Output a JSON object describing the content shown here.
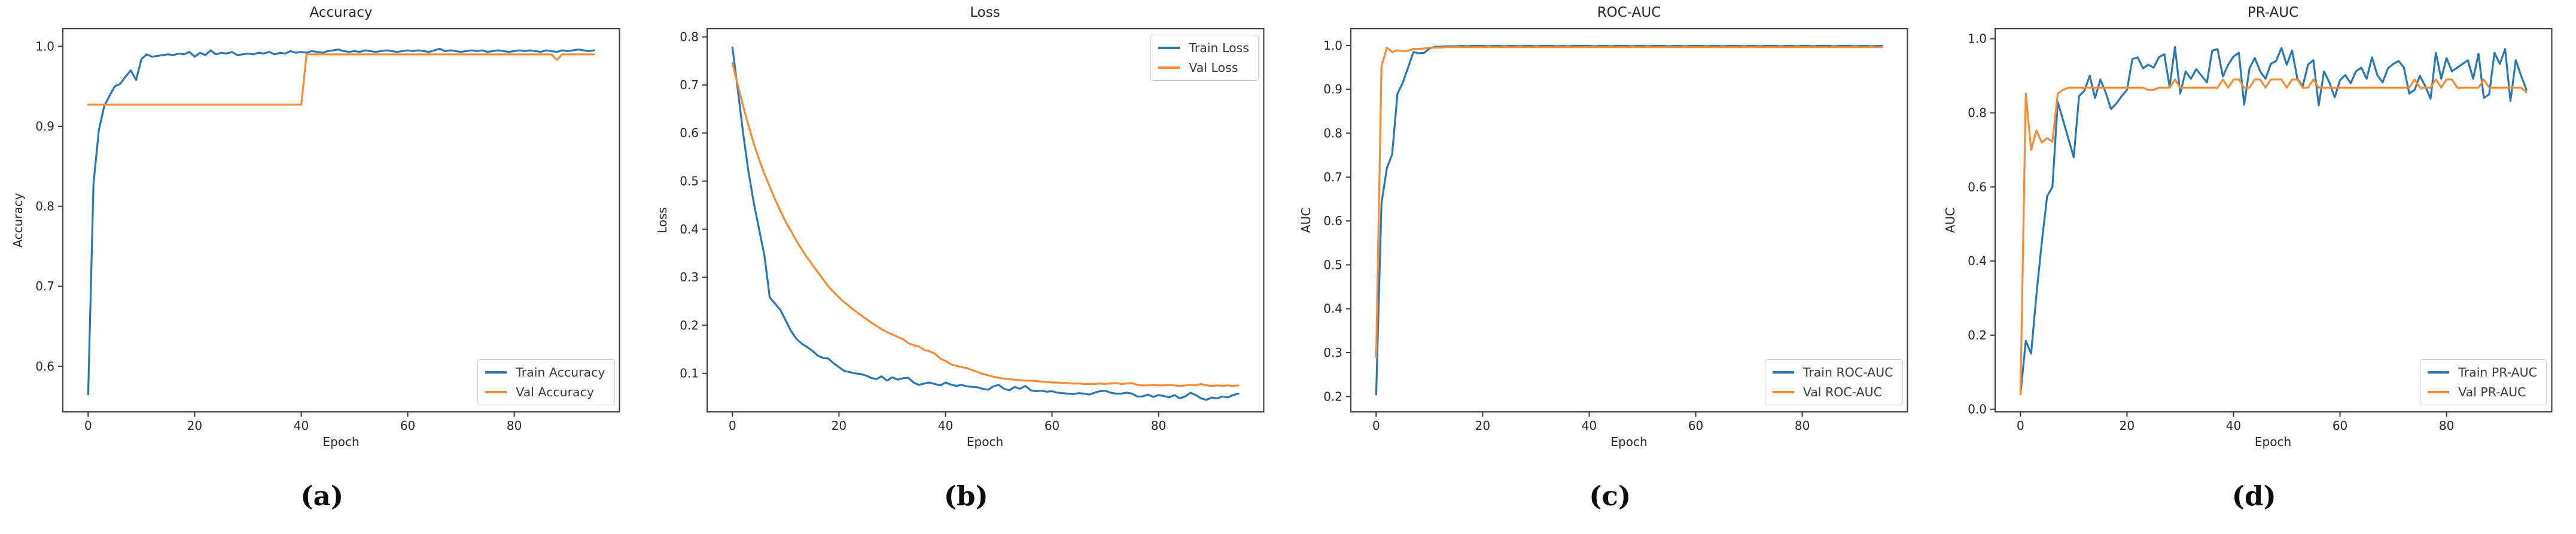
{
  "palette": {
    "train_blue": "#2878b8",
    "val_orange": "#fb8b32",
    "axis_frame": "#3a3a3a",
    "text": "#262626",
    "legend_border": "#cccccc",
    "background": "#ffffff"
  },
  "chart_data": [
    {
      "type": "line",
      "title": "Accuracy",
      "xlabel": "Epoch",
      "ylabel": "Accuracy",
      "caption": "(a)",
      "legend_position": "bottom-right",
      "xlim": [
        -4.75,
        99.75
      ],
      "ylim": [
        0.543,
        1.022
      ],
      "xticks": [
        0,
        20,
        40,
        60,
        80
      ],
      "yticks": [
        0.6,
        0.7,
        0.8,
        0.9,
        1.0
      ],
      "yticklabels": [
        "0.6",
        "0.7",
        "0.8",
        "0.9",
        "1.0"
      ],
      "grid": false,
      "series": [
        {
          "name": "Train Accuracy",
          "color": "#2878b8",
          "values": [
            0.565,
            0.828,
            0.895,
            0.925,
            0.938,
            0.95,
            0.953,
            0.962,
            0.97,
            0.958,
            0.984,
            0.99,
            0.987,
            0.988,
            0.989,
            0.99,
            0.989,
            0.991,
            0.99,
            0.993,
            0.987,
            0.992,
            0.989,
            0.995,
            0.99,
            0.992,
            0.991,
            0.993,
            0.989,
            0.99,
            0.991,
            0.99,
            0.992,
            0.991,
            0.993,
            0.99,
            0.992,
            0.991,
            0.994,
            0.992,
            0.993,
            0.992,
            0.994,
            0.993,
            0.992,
            0.994,
            0.995,
            0.996,
            0.994,
            0.993,
            0.994,
            0.993,
            0.995,
            0.994,
            0.993,
            0.994,
            0.995,
            0.994,
            0.993,
            0.994,
            0.995,
            0.994,
            0.995,
            0.994,
            0.993,
            0.995,
            0.997,
            0.994,
            0.995,
            0.994,
            0.993,
            0.994,
            0.995,
            0.994,
            0.995,
            0.993,
            0.994,
            0.995,
            0.994,
            0.993,
            0.994,
            0.995,
            0.994,
            0.995,
            0.994,
            0.993,
            0.995,
            0.994,
            0.993,
            0.995,
            0.994,
            0.995,
            0.996,
            0.995,
            0.994,
            0.995
          ]
        },
        {
          "name": "Val Accuracy",
          "color": "#fb8b32",
          "values": [
            0.927,
            0.927,
            0.927,
            0.927,
            0.927,
            0.927,
            0.927,
            0.927,
            0.927,
            0.927,
            0.927,
            0.927,
            0.927,
            0.927,
            0.927,
            0.927,
            0.927,
            0.927,
            0.927,
            0.927,
            0.927,
            0.927,
            0.927,
            0.927,
            0.927,
            0.927,
            0.927,
            0.927,
            0.927,
            0.927,
            0.927,
            0.927,
            0.927,
            0.927,
            0.927,
            0.927,
            0.927,
            0.927,
            0.927,
            0.927,
            0.927,
            0.99,
            0.99,
            0.99,
            0.99,
            0.99,
            0.99,
            0.99,
            0.99,
            0.99,
            0.99,
            0.99,
            0.99,
            0.99,
            0.99,
            0.99,
            0.99,
            0.99,
            0.99,
            0.99,
            0.99,
            0.99,
            0.99,
            0.99,
            0.99,
            0.99,
            0.99,
            0.99,
            0.99,
            0.99,
            0.99,
            0.99,
            0.99,
            0.99,
            0.99,
            0.99,
            0.99,
            0.99,
            0.99,
            0.99,
            0.99,
            0.99,
            0.99,
            0.99,
            0.99,
            0.99,
            0.99,
            0.99,
            0.983,
            0.99,
            0.99,
            0.99,
            0.99,
            0.99,
            0.99,
            0.99
          ]
        }
      ]
    },
    {
      "type": "line",
      "title": "Loss",
      "xlabel": "Epoch",
      "ylabel": "Loss",
      "caption": "(b)",
      "legend_position": "top-right",
      "xlim": [
        -4.75,
        99.75
      ],
      "ylim": [
        0.02,
        0.817
      ],
      "xticks": [
        0,
        20,
        40,
        60,
        80
      ],
      "yticks": [
        0.1,
        0.2,
        0.3,
        0.4,
        0.5,
        0.6,
        0.7,
        0.8
      ],
      "yticklabels": [
        "0.1",
        "0.2",
        "0.3",
        "0.4",
        "0.5",
        "0.6",
        "0.7",
        "0.8"
      ],
      "grid": false,
      "series": [
        {
          "name": "Train Loss",
          "color": "#2878b8",
          "values": [
            0.778,
            0.69,
            0.6,
            0.52,
            0.455,
            0.4,
            0.345,
            0.258,
            0.245,
            0.232,
            0.21,
            0.188,
            0.172,
            0.162,
            0.155,
            0.147,
            0.137,
            0.132,
            0.131,
            0.121,
            0.113,
            0.105,
            0.103,
            0.1,
            0.099,
            0.096,
            0.091,
            0.088,
            0.094,
            0.085,
            0.092,
            0.087,
            0.09,
            0.091,
            0.081,
            0.076,
            0.079,
            0.081,
            0.078,
            0.075,
            0.081,
            0.077,
            0.074,
            0.076,
            0.073,
            0.072,
            0.071,
            0.068,
            0.066,
            0.073,
            0.076,
            0.068,
            0.065,
            0.072,
            0.068,
            0.074,
            0.065,
            0.063,
            0.064,
            0.062,
            0.063,
            0.06,
            0.059,
            0.058,
            0.057,
            0.059,
            0.058,
            0.056,
            0.06,
            0.063,
            0.064,
            0.06,
            0.058,
            0.058,
            0.06,
            0.058,
            0.052,
            0.052,
            0.056,
            0.051,
            0.055,
            0.053,
            0.05,
            0.055,
            0.048,
            0.052,
            0.06,
            0.055,
            0.048,
            0.045,
            0.05,
            0.048,
            0.052,
            0.05,
            0.055,
            0.058
          ]
        },
        {
          "name": "Val Loss",
          "color": "#fb8b32",
          "values": [
            0.745,
            0.7,
            0.656,
            0.616,
            0.578,
            0.545,
            0.515,
            0.488,
            0.462,
            0.438,
            0.415,
            0.396,
            0.376,
            0.358,
            0.341,
            0.326,
            0.311,
            0.296,
            0.281,
            0.269,
            0.258,
            0.248,
            0.239,
            0.23,
            0.222,
            0.214,
            0.206,
            0.199,
            0.192,
            0.186,
            0.181,
            0.176,
            0.171,
            0.163,
            0.159,
            0.156,
            0.149,
            0.146,
            0.141,
            0.131,
            0.126,
            0.119,
            0.116,
            0.113,
            0.111,
            0.107,
            0.103,
            0.099,
            0.096,
            0.093,
            0.091,
            0.089,
            0.088,
            0.087,
            0.086,
            0.085,
            0.085,
            0.084,
            0.083,
            0.082,
            0.081,
            0.081,
            0.08,
            0.08,
            0.079,
            0.079,
            0.078,
            0.078,
            0.078,
            0.079,
            0.078,
            0.079,
            0.08,
            0.078,
            0.079,
            0.08,
            0.076,
            0.075,
            0.075,
            0.076,
            0.075,
            0.075,
            0.076,
            0.075,
            0.074,
            0.075,
            0.076,
            0.075,
            0.078,
            0.075,
            0.074,
            0.075,
            0.074,
            0.075,
            0.074,
            0.075
          ]
        }
      ]
    },
    {
      "type": "line",
      "title": "ROC-AUC",
      "xlabel": "Epoch",
      "ylabel": "AUC",
      "caption": "(c)",
      "legend_position": "bottom-right",
      "xlim": [
        -4.75,
        99.75
      ],
      "ylim": [
        0.165,
        1.038
      ],
      "xticks": [
        0,
        20,
        40,
        60,
        80
      ],
      "yticks": [
        0.2,
        0.3,
        0.4,
        0.5,
        0.6,
        0.7,
        0.8,
        0.9,
        1.0
      ],
      "yticklabels": [
        "0.2",
        "0.3",
        "0.4",
        "0.5",
        "0.6",
        "0.7",
        "0.8",
        "0.9",
        "1.0"
      ],
      "grid": false,
      "series": [
        {
          "name": "Train ROC-AUC",
          "color": "#2878b8",
          "values": [
            0.205,
            0.64,
            0.72,
            0.752,
            0.89,
            0.915,
            0.95,
            0.985,
            0.982,
            0.983,
            0.993,
            0.997,
            0.997,
            0.998,
            0.998,
            0.998,
            0.999,
            0.998,
            0.999,
            0.999,
            0.999,
            0.998,
            0.999,
            0.999,
            0.998,
            0.999,
            0.999,
            0.998,
            0.999,
            0.999,
            0.998,
            0.999,
            0.999,
            0.999,
            0.998,
            0.999,
            0.998,
            0.999,
            0.999,
            0.999,
            0.999,
            0.998,
            0.999,
            0.999,
            0.998,
            0.999,
            0.999,
            0.999,
            0.998,
            0.999,
            0.999,
            0.998,
            0.999,
            0.999,
            0.999,
            0.998,
            0.999,
            0.999,
            0.998,
            0.999,
            0.999,
            0.999,
            0.998,
            0.999,
            0.999,
            0.998,
            0.999,
            0.999,
            0.999,
            0.998,
            0.999,
            0.999,
            0.998,
            0.999,
            0.999,
            0.999,
            0.998,
            0.999,
            0.999,
            0.998,
            0.999,
            0.999,
            0.998,
            0.999,
            0.999,
            0.999,
            0.998,
            0.999,
            0.999,
            0.999,
            0.998,
            0.999,
            0.999,
            0.998,
            0.999,
            0.999
          ]
        },
        {
          "name": "Val ROC-AUC",
          "color": "#fb8b32",
          "values": [
            0.29,
            0.952,
            0.995,
            0.985,
            0.989,
            0.987,
            0.988,
            0.992,
            0.992,
            0.993,
            0.995,
            0.995,
            0.995,
            0.996,
            0.996,
            0.996,
            0.996,
            0.996,
            0.996,
            0.996,
            0.996,
            0.996,
            0.996,
            0.996,
            0.996,
            0.996,
            0.996,
            0.996,
            0.996,
            0.996,
            0.996,
            0.996,
            0.996,
            0.996,
            0.996,
            0.996,
            0.996,
            0.996,
            0.996,
            0.996,
            0.996,
            0.996,
            0.996,
            0.996,
            0.996,
            0.996,
            0.996,
            0.996,
            0.996,
            0.996,
            0.996,
            0.996,
            0.996,
            0.996,
            0.996,
            0.996,
            0.996,
            0.996,
            0.996,
            0.996,
            0.996,
            0.996,
            0.996,
            0.996,
            0.996,
            0.996,
            0.996,
            0.996,
            0.996,
            0.996,
            0.996,
            0.996,
            0.996,
            0.996,
            0.996,
            0.996,
            0.996,
            0.996,
            0.996,
            0.996,
            0.996,
            0.996,
            0.996,
            0.996,
            0.996,
            0.996,
            0.996,
            0.996,
            0.996,
            0.996,
            0.996,
            0.996,
            0.996,
            0.996,
            0.996,
            0.996
          ]
        }
      ]
    },
    {
      "type": "line",
      "title": "PR-AUC",
      "xlabel": "Epoch",
      "ylabel": "AUC",
      "caption": "(d)",
      "legend_position": "bottom-right",
      "xlim": [
        -4.75,
        99.75
      ],
      "ylim": [
        -0.007,
        1.027
      ],
      "xticks": [
        0,
        20,
        40,
        60,
        80
      ],
      "yticks": [
        0.0,
        0.2,
        0.4,
        0.6,
        0.8,
        1.0
      ],
      "yticklabels": [
        "0.0",
        "0.2",
        "0.4",
        "0.6",
        "0.8",
        "1.0"
      ],
      "grid": false,
      "series": [
        {
          "name": "Train PR-AUC",
          "color": "#2878b8",
          "values": [
            0.04,
            0.185,
            0.15,
            0.31,
            0.45,
            0.575,
            0.6,
            0.83,
            0.78,
            0.73,
            0.68,
            0.845,
            0.86,
            0.9,
            0.84,
            0.89,
            0.855,
            0.81,
            0.825,
            0.845,
            0.862,
            0.945,
            0.95,
            0.92,
            0.93,
            0.922,
            0.95,
            0.958,
            0.87,
            0.978,
            0.852,
            0.912,
            0.892,
            0.918,
            0.9,
            0.882,
            0.968,
            0.972,
            0.898,
            0.93,
            0.952,
            0.962,
            0.822,
            0.92,
            0.948,
            0.912,
            0.892,
            0.932,
            0.94,
            0.975,
            0.93,
            0.968,
            0.892,
            0.872,
            0.93,
            0.942,
            0.82,
            0.912,
            0.882,
            0.842,
            0.888,
            0.902,
            0.88,
            0.912,
            0.922,
            0.892,
            0.95,
            0.902,
            0.882,
            0.92,
            0.932,
            0.94,
            0.922,
            0.852,
            0.862,
            0.9,
            0.872,
            0.838,
            0.962,
            0.892,
            0.948,
            0.912,
            0.922,
            0.932,
            0.942,
            0.892,
            0.96,
            0.84,
            0.85,
            0.962,
            0.932,
            0.972,
            0.832,
            0.942,
            0.9,
            0.862
          ]
        },
        {
          "name": "Val PR-AUC",
          "color": "#fb8b32",
          "values": [
            0.04,
            0.852,
            0.7,
            0.752,
            0.72,
            0.732,
            0.722,
            0.852,
            0.862,
            0.868,
            0.868,
            0.868,
            0.868,
            0.868,
            0.868,
            0.868,
            0.868,
            0.868,
            0.868,
            0.868,
            0.868,
            0.868,
            0.868,
            0.868,
            0.862,
            0.862,
            0.868,
            0.868,
            0.868,
            0.89,
            0.868,
            0.868,
            0.868,
            0.868,
            0.868,
            0.868,
            0.868,
            0.868,
            0.89,
            0.868,
            0.89,
            0.89,
            0.868,
            0.868,
            0.89,
            0.89,
            0.868,
            0.89,
            0.89,
            0.89,
            0.868,
            0.89,
            0.89,
            0.868,
            0.868,
            0.89,
            0.868,
            0.868,
            0.868,
            0.868,
            0.868,
            0.868,
            0.868,
            0.868,
            0.868,
            0.868,
            0.868,
            0.868,
            0.868,
            0.868,
            0.868,
            0.868,
            0.868,
            0.868,
            0.89,
            0.868,
            0.868,
            0.868,
            0.89,
            0.868,
            0.89,
            0.89,
            0.868,
            0.868,
            0.868,
            0.868,
            0.868,
            0.89,
            0.868,
            0.868,
            0.868,
            0.868,
            0.868,
            0.868,
            0.868,
            0.855
          ]
        }
      ]
    }
  ]
}
